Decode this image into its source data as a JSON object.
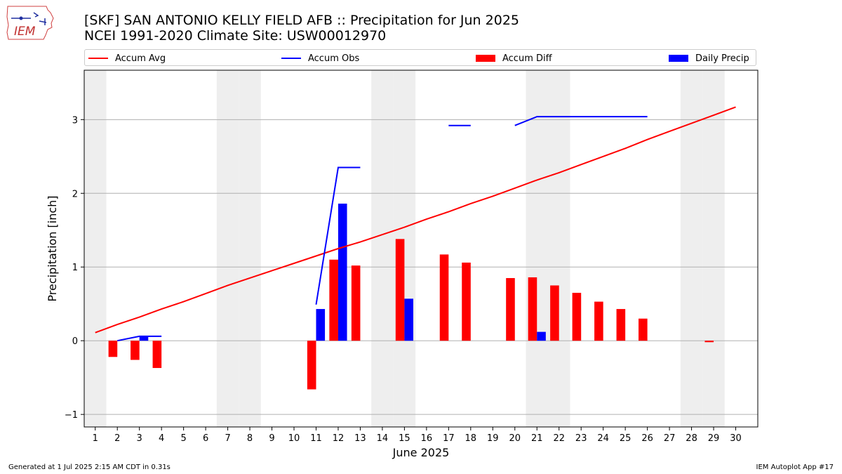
{
  "header": {
    "title_line1": "[SKF] SAN ANTONIO KELLY FIELD AFB :: Precipitation for Jun 2025",
    "title_line2": "NCEI 1991-2020 Climate Site: USW00012970"
  },
  "logo": {
    "text": "IEM"
  },
  "footer": {
    "generated": "Generated at 1 Jul 2025 2:15 AM CDT in 0.31s",
    "app": "IEM Autoplot App #17"
  },
  "colors": {
    "avg": "#ff0000",
    "obs": "#0000ff",
    "diff": "#ff0000",
    "daily": "#0000ff",
    "weekend": "#eeeeee",
    "grid": "#b0b0b0"
  },
  "chart_data": {
    "type": "bar",
    "xlabel": "June 2025",
    "ylabel": "Precipitation [inch]",
    "xlim": [
      0.5,
      31.0
    ],
    "ylim": [
      -1.17,
      3.67
    ],
    "yticks": [
      -1,
      0,
      1,
      2,
      3
    ],
    "grid": true,
    "legend_position": "top",
    "days": [
      1,
      2,
      3,
      4,
      5,
      6,
      7,
      8,
      9,
      10,
      11,
      12,
      13,
      14,
      15,
      16,
      17,
      18,
      19,
      20,
      21,
      22,
      23,
      24,
      25,
      26,
      27,
      28,
      29,
      30
    ],
    "weekend_days": [
      1,
      7,
      8,
      14,
      15,
      21,
      22,
      28,
      29
    ],
    "series": [
      {
        "name": "Accum Avg",
        "type": "line",
        "x": [
          1,
          2,
          3,
          4,
          5,
          6,
          7,
          8,
          9,
          10,
          11,
          12,
          13,
          14,
          15,
          16,
          17,
          18,
          19,
          20,
          21,
          22,
          23,
          24,
          25,
          26,
          27,
          28,
          29,
          30
        ],
        "values": [
          0.11,
          0.22,
          0.32,
          0.43,
          0.53,
          0.64,
          0.75,
          0.85,
          0.95,
          1.05,
          1.15,
          1.25,
          1.34,
          1.44,
          1.54,
          1.65,
          1.75,
          1.86,
          1.96,
          2.07,
          2.18,
          2.28,
          2.39,
          2.5,
          2.61,
          2.73,
          2.84,
          2.95,
          3.06,
          3.17
        ]
      },
      {
        "name": "Accum Obs",
        "type": "line",
        "segments": [
          {
            "x": [
              2,
              3,
              4
            ],
            "values": [
              0.0,
              0.06,
              0.06
            ]
          },
          {
            "x": [
              11,
              12,
              13
            ],
            "values": [
              0.49,
              2.35,
              2.35
            ]
          },
          {
            "x": [
              17,
              18
            ],
            "values": [
              2.92,
              2.92
            ]
          },
          {
            "x": [
              20,
              21,
              22,
              23,
              24,
              25,
              26
            ],
            "values": [
              2.92,
              3.04,
              3.04,
              3.04,
              3.04,
              3.04,
              3.04
            ]
          }
        ]
      },
      {
        "name": "Accum Diff",
        "type": "bar",
        "x": [
          2,
          3,
          4,
          11,
          12,
          13,
          15,
          17,
          18,
          20,
          21,
          22,
          23,
          24,
          25,
          26,
          29
        ],
        "values": [
          -0.22,
          -0.26,
          -0.37,
          -0.66,
          1.1,
          1.02,
          1.38,
          1.17,
          1.06,
          0.85,
          0.86,
          0.75,
          0.65,
          0.53,
          0.43,
          0.3,
          -0.02
        ]
      },
      {
        "name": "Daily Precip",
        "type": "bar",
        "x": [
          3,
          11,
          12,
          15,
          21
        ],
        "values": [
          0.06,
          0.43,
          1.86,
          0.57,
          0.12
        ]
      }
    ]
  }
}
